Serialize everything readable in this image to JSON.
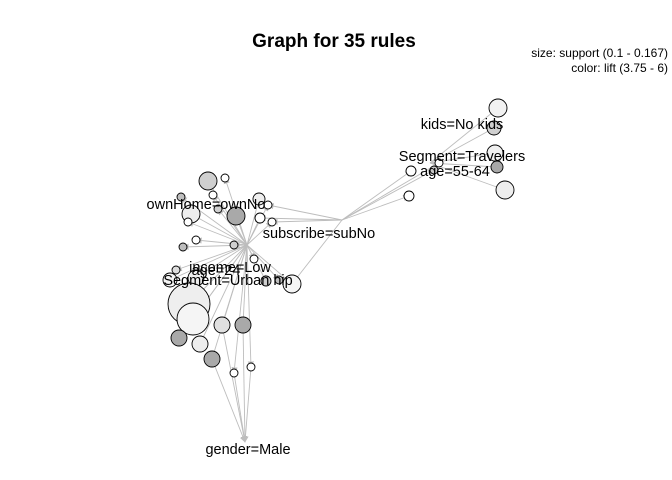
{
  "title": "Graph for 35 rules",
  "legend": {
    "size": "size: support (0.1 - 0.167)",
    "color": "color: lift (3.75 - 6)"
  },
  "items": [
    {
      "id": "kids",
      "text": "kids=No kids"
    },
    {
      "id": "segtrav",
      "text": "Segment=Travelers"
    },
    {
      "id": "age5564",
      "text": "age=55-64"
    },
    {
      "id": "ownhome",
      "text": "ownHome=ownNo"
    },
    {
      "id": "subscribe",
      "text": "subscribe=subNo"
    },
    {
      "id": "income",
      "text": "income=Low"
    },
    {
      "id": "age24",
      "text": "age=24"
    },
    {
      "id": "segurban",
      "text": "Segment=Urban hip"
    },
    {
      "id": "gender",
      "text": "gender=Male"
    }
  ]
}
